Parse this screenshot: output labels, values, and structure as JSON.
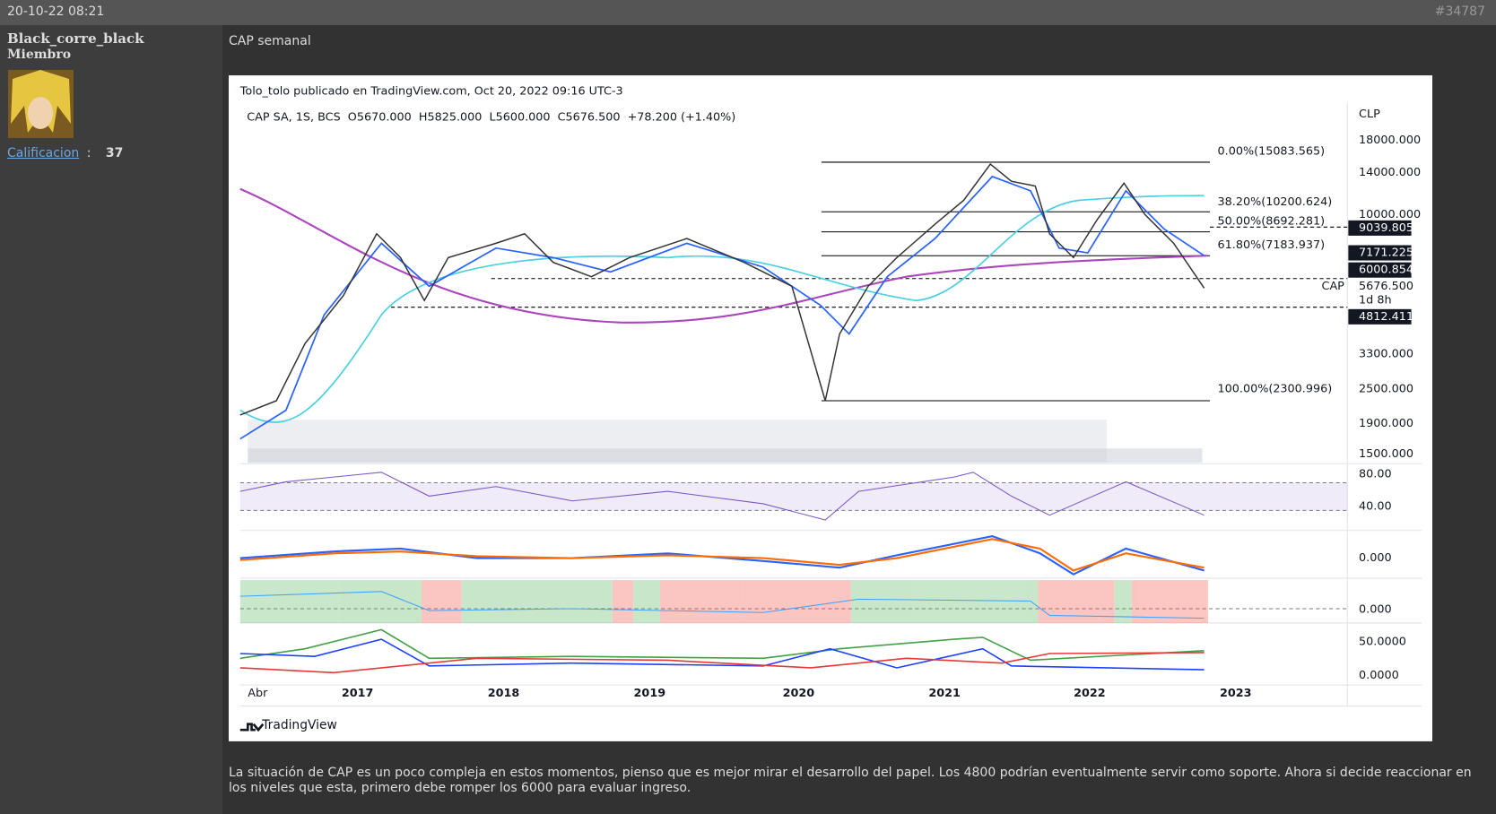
{
  "header": {
    "date": "20-10-22 08:21",
    "post_number": "#34787"
  },
  "user": {
    "name": "Black_corre_black",
    "role": "Miembro",
    "rating_label": "Calificacion",
    "rating_sep": ":",
    "rating": "37"
  },
  "post": {
    "title": "CAP semanal",
    "body": "La situación de CAP es un poco compleja en estos momentos, pienso que es mejor mirar el desarrollo del papel. Los 4800 podrían eventualmente servir como soporte. Ahora si decide reaccionar en los niveles que esta, primero debe romper los 6000 para evaluar ingreso."
  },
  "chart": {
    "publisher": "Tolo_tolo publicado en TradingView.com, Oct 20, 2022 09:16 UTC-3",
    "symbol_line": "CAP SA, 1S, BCS  O5670.000  H5825.000  L5600.000  C5676.500  +78.200 (+1.40%)",
    "currency": "CLP",
    "price_ticks": [
      "18000.000",
      "14000.000",
      "10000.000",
      "3300.000",
      "2500.000",
      "1900.000",
      "1500.000"
    ],
    "fib_levels": [
      "0.00%(15083.565)",
      "38.20%(10200.624)",
      "50.00%(8692.281)",
      "61.80%(7183.937)",
      "100.00%(2300.996)"
    ],
    "price_tags": [
      "9039.805",
      "7171.225",
      "6000.854",
      "4812.411"
    ],
    "symbol": "CAP",
    "last_price": "5676.500",
    "countdown": "1d 8h",
    "rsi_ticks": [
      "80.00",
      "40.00"
    ],
    "macd_ticks": [
      "0.000"
    ],
    "osc_ticks": [
      "0.000"
    ],
    "dmi_ticks": [
      "50.0000",
      "0.0000"
    ],
    "x_labels": [
      "Abr",
      "2017",
      "2018",
      "2019",
      "2020",
      "2021",
      "2022",
      "2023"
    ],
    "brand": "TradingView"
  }
}
